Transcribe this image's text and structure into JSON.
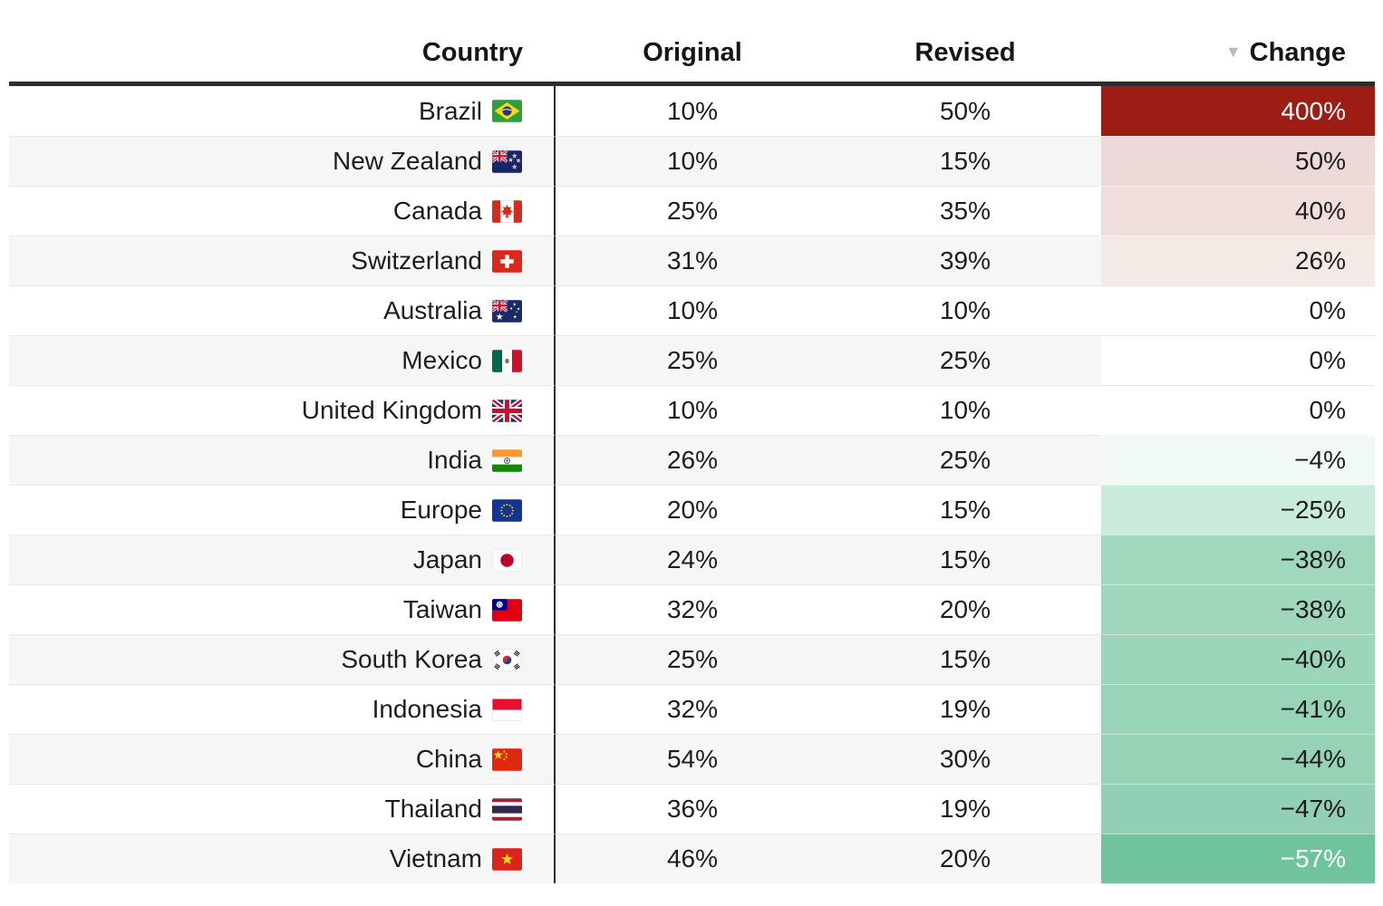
{
  "table": {
    "columns": [
      {
        "label": "Country"
      },
      {
        "label": "Original"
      },
      {
        "label": "Revised"
      },
      {
        "label": "Change",
        "sort": "desc"
      }
    ],
    "sort_indicator": "▼",
    "stripe_colors": [
      "#FFFFFF",
      "#F6F6F6"
    ],
    "header_rule_color": "#2D2D2D",
    "divider_color": "#2D2D2D",
    "separator_color": "#E8E8E8",
    "default_text_color": "#1D1D1D"
  },
  "rows": [
    {
      "country": "Brazil",
      "flag": "flag-brazil",
      "original": "10%",
      "revised": "50%",
      "change": "400%",
      "change_bg": "#9D1C13",
      "change_fg": "#FFFFFF"
    },
    {
      "country": "New Zealand",
      "flag": "flag-new-zealand",
      "original": "10%",
      "revised": "15%",
      "change": "50%",
      "change_bg": "#EDD9D8",
      "change_fg": "#1D1D1D"
    },
    {
      "country": "Canada",
      "flag": "flag-canada",
      "original": "25%",
      "revised": "35%",
      "change": "40%",
      "change_bg": "#EFDEDC",
      "change_fg": "#1D1D1D"
    },
    {
      "country": "Switzerland",
      "flag": "flag-switzerland",
      "original": "31%",
      "revised": "39%",
      "change": "26%",
      "change_bg": "#F5E9E6",
      "change_fg": "#1D1D1D"
    },
    {
      "country": "Australia",
      "flag": "flag-australia",
      "original": "10%",
      "revised": "10%",
      "change": "0%",
      "change_bg": "#FFFFFF",
      "change_fg": "#1D1D1D"
    },
    {
      "country": "Mexico",
      "flag": "flag-mexico",
      "original": "25%",
      "revised": "25%",
      "change": "0%",
      "change_bg": "#FFFFFF",
      "change_fg": "#1D1D1D"
    },
    {
      "country": "United Kingdom",
      "flag": "flag-united-kingdom",
      "original": "10%",
      "revised": "10%",
      "change": "0%",
      "change_bg": "#FFFFFF",
      "change_fg": "#1D1D1D"
    },
    {
      "country": "India",
      "flag": "flag-india",
      "original": "26%",
      "revised": "25%",
      "change": "−4%",
      "change_bg": "#F0F9F5",
      "change_fg": "#1D1D1D"
    },
    {
      "country": "Europe",
      "flag": "flag-europe",
      "original": "20%",
      "revised": "15%",
      "change": "−25%",
      "change_bg": "#C9EBDC",
      "change_fg": "#1D1D1D"
    },
    {
      "country": "Japan",
      "flag": "flag-japan",
      "original": "24%",
      "revised": "15%",
      "change": "−38%",
      "change_bg": "#A0D8BE",
      "change_fg": "#1D1D1D"
    },
    {
      "country": "Taiwan",
      "flag": "flag-taiwan",
      "original": "32%",
      "revised": "20%",
      "change": "−38%",
      "change_bg": "#9ED7BC",
      "change_fg": "#1D1D1D"
    },
    {
      "country": "South Korea",
      "flag": "flag-south-korea",
      "original": "25%",
      "revised": "15%",
      "change": "−40%",
      "change_bg": "#9BD5BA",
      "change_fg": "#1D1D1D"
    },
    {
      "country": "Indonesia",
      "flag": "flag-indonesia",
      "original": "32%",
      "revised": "19%",
      "change": "−41%",
      "change_bg": "#98D4B8",
      "change_fg": "#1D1D1D"
    },
    {
      "country": "China",
      "flag": "flag-china",
      "original": "54%",
      "revised": "30%",
      "change": "−44%",
      "change_bg": "#95D2B6",
      "change_fg": "#1D1D1D"
    },
    {
      "country": "Thailand",
      "flag": "flag-thailand",
      "original": "36%",
      "revised": "19%",
      "change": "−47%",
      "change_bg": "#91D0B4",
      "change_fg": "#1D1D1D"
    },
    {
      "country": "Vietnam",
      "flag": "flag-vietnam",
      "original": "46%",
      "revised": "20%",
      "change": "−57%",
      "change_bg": "#70C49B",
      "change_fg": "#FFFFFF"
    }
  ],
  "chart_data": {
    "type": "table",
    "columns": [
      "Country",
      "Original",
      "Revised",
      "Change"
    ],
    "units": "percent",
    "sort": {
      "column": "Change",
      "direction": "desc"
    },
    "color_encoding": {
      "positive_change": "red scale (dark red = largest increase)",
      "zero_change": "white",
      "negative_change": "green scale (dark green = largest decrease)"
    },
    "rows": [
      [
        "Brazil",
        10,
        50,
        400
      ],
      [
        "New Zealand",
        10,
        15,
        50
      ],
      [
        "Canada",
        25,
        35,
        40
      ],
      [
        "Switzerland",
        31,
        39,
        26
      ],
      [
        "Australia",
        10,
        10,
        0
      ],
      [
        "Mexico",
        25,
        25,
        0
      ],
      [
        "United Kingdom",
        10,
        10,
        0
      ],
      [
        "India",
        26,
        25,
        -4
      ],
      [
        "Europe",
        20,
        15,
        -25
      ],
      [
        "Japan",
        24,
        15,
        -38
      ],
      [
        "Taiwan",
        32,
        20,
        -38
      ],
      [
        "South Korea",
        25,
        15,
        -40
      ],
      [
        "Indonesia",
        32,
        19,
        -41
      ],
      [
        "China",
        54,
        30,
        -44
      ],
      [
        "Thailand",
        36,
        19,
        -47
      ],
      [
        "Vietnam",
        46,
        20,
        -57
      ]
    ]
  }
}
